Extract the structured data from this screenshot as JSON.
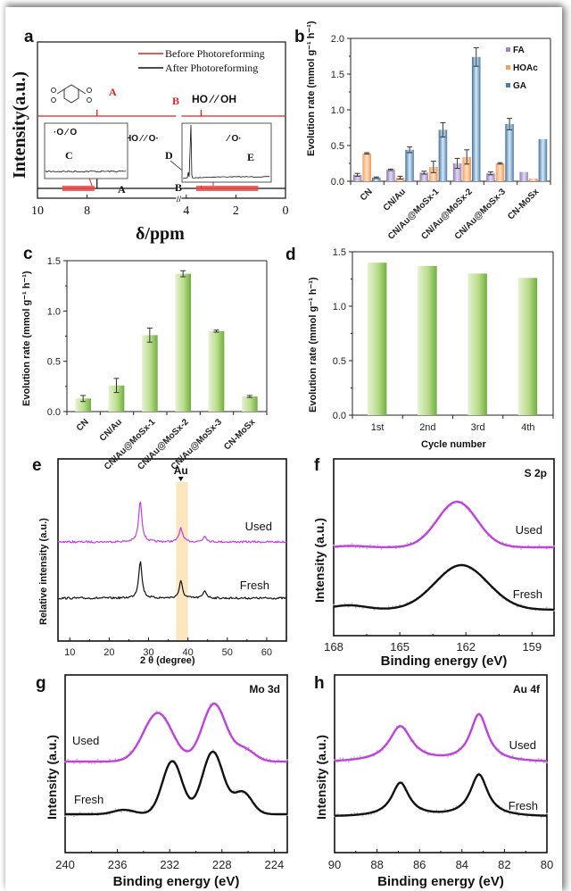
{
  "chart_data": [
    {
      "id": "a",
      "panel_label": "a",
      "type": "line",
      "title": "",
      "xlabel": "δ/ppm",
      "ylabel": "Intensity(a.u.)",
      "xlim": [
        10,
        0
      ],
      "x_ticks": [
        "10",
        "8",
        "4",
        "2",
        "0"
      ],
      "x_tick_values": [
        10,
        8,
        4,
        2,
        0
      ],
      "axis_break": 4.3,
      "legend": [
        {
          "name": "Before Photoreforming",
          "color": "#e02020"
        },
        {
          "name": "After Photoreforming",
          "color": "#111111"
        }
      ],
      "legend_position": "top-right",
      "series": [
        {
          "name": "Before Photoreforming",
          "color": "#e02020",
          "peaks": [
            {
              "label": "A",
              "x": 7.6
            },
            {
              "label": "B",
              "x": 3.4
            }
          ]
        },
        {
          "name": "After Photoreforming",
          "color": "#111111",
          "peaks": [
            {
              "label": "A",
              "x": 7.6
            },
            {
              "label": "B",
              "x": 3.4
            },
            {
              "label": "C",
              "x": 8.3
            },
            {
              "label": "D",
              "x": 3.6
            },
            {
              "label": "E",
              "x": 1.2
            }
          ]
        }
      ],
      "highlight_ranges": [
        [
          9.0,
          7.7
        ],
        [
          3.6,
          1.1
        ]
      ],
      "annotations": [
        "A",
        "B",
        "C",
        "D",
        "E"
      ],
      "structure_labels": [
        "HO",
        "OH",
        "HO",
        "O",
        "O"
      ]
    },
    {
      "id": "b",
      "panel_label": "b",
      "type": "bar",
      "title": "",
      "xlabel": "",
      "ylabel": "Evolution rate (mmol g⁻¹ h⁻¹)",
      "ylim": [
        0,
        2.0
      ],
      "y_ticks": [
        "0.0",
        "0.5",
        "1.0",
        "1.5",
        "2.0"
      ],
      "y_tick_values": [
        0,
        0.5,
        1.0,
        1.5,
        2.0
      ],
      "categories": [
        "CN",
        "CN/Au",
        "CN/Au@MoSx-1",
        "CN/Au@MoSx-2",
        "CN/Au@MoSx-3",
        "CN-MoSx"
      ],
      "legend_position": "top-right",
      "series": [
        {
          "name": "FA",
          "color": "#9b88c2",
          "values": [
            0.09,
            0.16,
            0.12,
            0.25,
            0.11,
            0.13
          ],
          "errors": [
            0.02,
            0.01,
            0.02,
            0.07,
            0.02,
            0
          ]
        },
        {
          "name": "HOAc",
          "color": "#f4a261",
          "values": [
            0.39,
            0.05,
            0.2,
            0.34,
            0.25,
            0.04
          ],
          "errors": [
            0.01,
            0.02,
            0.08,
            0.1,
            0.01,
            0
          ]
        },
        {
          "name": "GA",
          "color": "#4a7fad",
          "values": [
            0.05,
            0.44,
            0.72,
            1.74,
            0.8,
            0.59
          ],
          "errors": [
            0.01,
            0.04,
            0.1,
            0.13,
            0.08,
            0
          ]
        }
      ]
    },
    {
      "id": "c",
      "panel_label": "c",
      "type": "bar",
      "title": "",
      "xlabel": "",
      "ylabel": "Evolution rate (mmol g⁻¹ h⁻¹)",
      "ylim": [
        0,
        1.5
      ],
      "y_ticks": [
        "0.0",
        "0.5",
        "1.0",
        "1.5"
      ],
      "y_tick_values": [
        0,
        0.5,
        1.0,
        1.5
      ],
      "categories": [
        "CN",
        "CN/Au",
        "CN/Au@MoSx-1",
        "CN/Au@MoSx-2",
        "CN/Au@MoSx-3",
        "CN-MoSx"
      ],
      "series": [
        {
          "name": "Evolution rate",
          "color": "#7ab648",
          "values": [
            0.13,
            0.26,
            0.76,
            1.37,
            0.8,
            0.15
          ],
          "errors": [
            0.03,
            0.07,
            0.07,
            0.03,
            0.01,
            0.01
          ]
        }
      ]
    },
    {
      "id": "d",
      "panel_label": "d",
      "type": "bar",
      "title": "",
      "xlabel": "Cycle number",
      "ylabel": "Evolution rate (mmol g⁻¹ h⁻¹)",
      "ylim": [
        0,
        1.5
      ],
      "y_ticks": [
        "0.0",
        "0.5",
        "1.0",
        "1.5"
      ],
      "y_tick_values": [
        0,
        0.5,
        1.0,
        1.5
      ],
      "categories": [
        "1st",
        "2nd",
        "3rd",
        "4th"
      ],
      "series": [
        {
          "name": "Evolution rate",
          "color": "#7ab648",
          "values": [
            1.4,
            1.37,
            1.3,
            1.26
          ]
        }
      ]
    },
    {
      "id": "e",
      "panel_label": "e",
      "type": "line",
      "title": "",
      "xlabel": "2 θ (degree)",
      "ylabel": "Relative intensity (a.u.)",
      "xlim": [
        7,
        65
      ],
      "x_ticks": [
        "10",
        "20",
        "30",
        "40",
        "50",
        "60"
      ],
      "x_tick_values": [
        10,
        20,
        30,
        40,
        50,
        60
      ],
      "highlight_band": {
        "label": "Au",
        "range": [
          37,
          40
        ],
        "marker_x": 38.2,
        "color": "#fbe6bd"
      },
      "series": [
        {
          "name": "Used",
          "color": "#c040e0",
          "peaks": [
            {
              "x": 27.9,
              "h": 1.0
            },
            {
              "x": 38.2,
              "h": 0.35
            },
            {
              "x": 44.3,
              "h": 0.15
            }
          ],
          "offset": 1.0
        },
        {
          "name": "Fresh",
          "color": "#111111",
          "peaks": [
            {
              "x": 27.9,
              "h": 1.0
            },
            {
              "x": 38.2,
              "h": 0.45
            },
            {
              "x": 44.3,
              "h": 0.2
            }
          ],
          "offset": 0.0
        }
      ]
    },
    {
      "id": "f",
      "panel_label": "f",
      "type": "line",
      "title": "S 2p",
      "xlabel": "Binding energy (eV)",
      "ylabel": "Intensity (a.u.)",
      "xlim": [
        168,
        158
      ],
      "x_ticks": [
        "168",
        "165",
        "162",
        "159"
      ],
      "x_tick_values": [
        168,
        165,
        162,
        159
      ],
      "series": [
        {
          "name": "Used",
          "color": "#c040e0",
          "peaks": [
            {
              "x": 162.4,
              "h": 1.0,
              "w": 0.9
            },
            {
              "x": 167.2,
              "h": 0.03,
              "w": 0.6
            }
          ],
          "offset": 1.0
        },
        {
          "name": "Fresh",
          "color": "#111111",
          "peaks": [
            {
              "x": 162.2,
              "h": 1.0,
              "w": 1.2
            },
            {
              "x": 167.3,
              "h": 0.1,
              "w": 0.8
            }
          ],
          "offset": 0.0
        }
      ]
    },
    {
      "id": "g",
      "panel_label": "g",
      "type": "line",
      "title": "Mo 3d",
      "xlabel": "Binding energy (eV)",
      "ylabel": "Intensity (a.u.)",
      "xlim": [
        240,
        223
      ],
      "x_ticks": [
        "240",
        "236",
        "232",
        "228",
        "224"
      ],
      "x_tick_values": [
        240,
        236,
        232,
        228,
        224
      ],
      "series": [
        {
          "name": "Used",
          "color": "#c040e0",
          "peaks": [
            {
              "x": 232.9,
              "h": 0.8,
              "w": 1.1
            },
            {
              "x": 228.6,
              "h": 0.95,
              "w": 0.9
            },
            {
              "x": 226.3,
              "h": 0.2,
              "w": 0.8
            }
          ],
          "offset": 1.0
        },
        {
          "name": "Fresh",
          "color": "#111111",
          "peaks": [
            {
              "x": 231.8,
              "h": 0.85,
              "w": 0.75
            },
            {
              "x": 228.7,
              "h": 1.0,
              "w": 0.8
            },
            {
              "x": 226.4,
              "h": 0.35,
              "w": 0.7
            },
            {
              "x": 235.5,
              "h": 0.07,
              "w": 0.8
            }
          ],
          "offset": 0.0
        }
      ]
    },
    {
      "id": "h",
      "panel_label": "h",
      "type": "line",
      "title": "Au 4f",
      "xlabel": "Binding energy (eV)",
      "ylabel": "Intensity (a.u.)",
      "xlim": [
        90,
        80
      ],
      "x_ticks": [
        "90",
        "88",
        "86",
        "84",
        "82",
        "80"
      ],
      "x_tick_values": [
        90,
        88,
        86,
        84,
        82,
        80
      ],
      "series": [
        {
          "name": "Used",
          "color": "#c040e0",
          "peaks": [
            {
              "x": 86.9,
              "h": 0.75,
              "w": 0.65
            },
            {
              "x": 83.2,
              "h": 1.0,
              "w": 0.5
            }
          ],
          "offset": 1.0
        },
        {
          "name": "Fresh",
          "color": "#111111",
          "peaks": [
            {
              "x": 86.9,
              "h": 0.8,
              "w": 0.5
            },
            {
              "x": 83.2,
              "h": 1.0,
              "w": 0.5
            }
          ],
          "offset": 0.0
        }
      ]
    }
  ]
}
